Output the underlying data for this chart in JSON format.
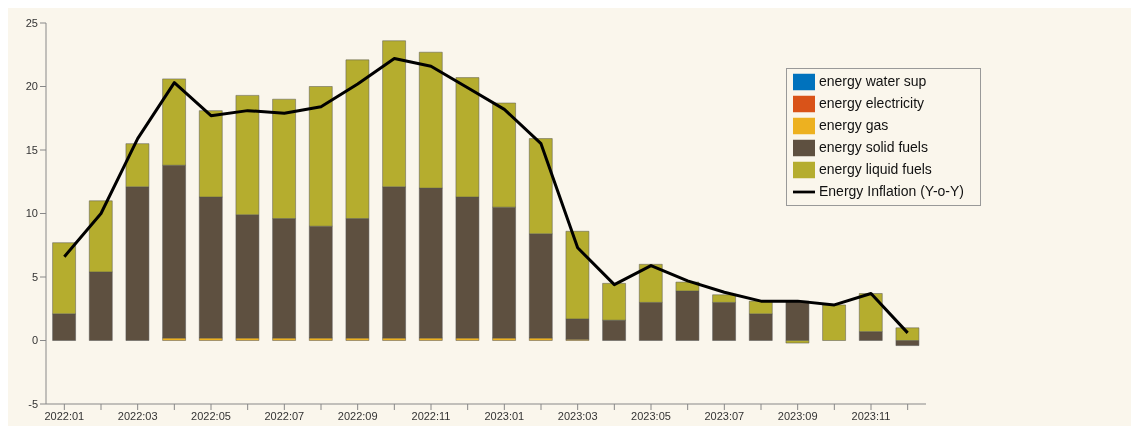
{
  "chart_data": {
    "type": "bar",
    "stacked": true,
    "categories": [
      "2022:01",
      null,
      "2022:03",
      null,
      "2022:05",
      null,
      "2022:07",
      null,
      "2022:09",
      null,
      "2022:11",
      null,
      "2023:01",
      null,
      "2023:03",
      null,
      "2023:05",
      null,
      "2023:07",
      null,
      "2023:09",
      null,
      "2023:11",
      null
    ],
    "series": [
      {
        "name": "energy water sup",
        "color": "#0072bd",
        "values": [
          0,
          0,
          0,
          0,
          0,
          0,
          0,
          0,
          0,
          0,
          0,
          0,
          0,
          0,
          0,
          0,
          0,
          0,
          0,
          0,
          0,
          0,
          0,
          0
        ]
      },
      {
        "name": "energy electricity",
        "color": "#d95319",
        "values": [
          0,
          0,
          0,
          0,
          0,
          0,
          0,
          0,
          0,
          0,
          0,
          0,
          0,
          0,
          0,
          0,
          0,
          0,
          0,
          0,
          0,
          0,
          0,
          0
        ]
      },
      {
        "name": "energy gas",
        "color": "#edb120",
        "values": [
          0,
          0,
          0,
          0.2,
          0.2,
          0.2,
          0.2,
          0.2,
          0.2,
          0.2,
          0.2,
          0.2,
          0.2,
          0.2,
          0.1,
          0,
          0,
          0,
          0,
          0,
          0,
          0,
          0,
          0
        ]
      },
      {
        "name": "energy solid fuels",
        "color": "#5e5040",
        "values": [
          2.1,
          5.4,
          12.1,
          13.6,
          11.1,
          9.7,
          9.4,
          8.8,
          9.4,
          11.9,
          11.8,
          11.1,
          10.3,
          8.2,
          1.6,
          1.6,
          3.0,
          3.9,
          3.0,
          2.1,
          3.1,
          0,
          0.7,
          -0.4
        ]
      },
      {
        "name": "energy liquid fuels",
        "color": "#b5ad2e",
        "values": [
          5.6,
          5.6,
          3.4,
          6.8,
          6.8,
          9.4,
          9.4,
          11.0,
          12.5,
          11.5,
          10.7,
          9.4,
          8.2,
          7.5,
          6.9,
          2.9,
          3.0,
          0.7,
          0.6,
          1.0,
          -0.2,
          2.8,
          3.0,
          1.0
        ]
      },
      {
        "name": "Energy Inflation (Y-o-Y)",
        "type": "line",
        "color": "#000000",
        "values": [
          6.6,
          10.0,
          15.9,
          20.3,
          17.7,
          18.1,
          17.9,
          18.4,
          20.2,
          22.2,
          21.6,
          19.9,
          18.2,
          15.5,
          7.3,
          4.4,
          5.9,
          4.7,
          3.8,
          3.1,
          3.1,
          2.8,
          3.7,
          0.6
        ]
      }
    ],
    "ylim": [
      -5,
      25
    ],
    "yticks": [
      -5,
      0,
      5,
      10,
      15,
      20,
      25
    ],
    "grid": false,
    "legend": "top right",
    "marker": "none"
  }
}
